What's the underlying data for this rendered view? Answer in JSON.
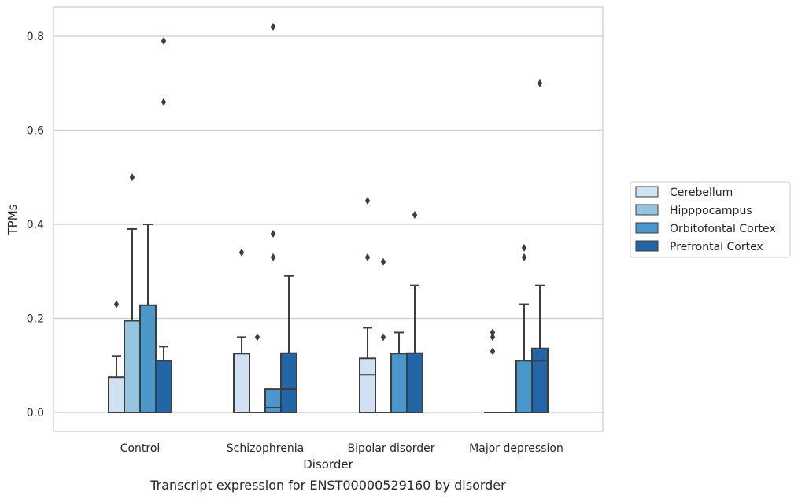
{
  "chart_data": {
    "type": "box",
    "xlabel": "Disorder",
    "ylabel": "TPMs",
    "caption": "Transcript expression for ENST00000529160 by disorder",
    "ylim": [
      -0.04,
      0.86
    ],
    "yticks": [
      0.0,
      0.2,
      0.4,
      0.6,
      0.8
    ],
    "ytick_labels": [
      "0.0",
      "0.2",
      "0.4",
      "0.6",
      "0.8"
    ],
    "grid": "horizontal",
    "legend_position": "right",
    "categories": [
      "Control",
      "Schizophrenia",
      "Bipolar disorder",
      "Major depression"
    ],
    "series": [
      {
        "name": "Cerebellum",
        "color": "#d0e1f2",
        "boxes": [
          {
            "q1": 0.0,
            "median": 0.0,
            "q3": 0.075,
            "whisker_low": 0.0,
            "whisker_high": 0.12,
            "outliers": [
              0.23
            ]
          },
          {
            "q1": 0.0,
            "median": 0.0,
            "q3": 0.125,
            "whisker_low": 0.0,
            "whisker_high": 0.16,
            "outliers": [
              0.34
            ]
          },
          {
            "q1": 0.0,
            "median": 0.08,
            "q3": 0.115,
            "whisker_low": 0.0,
            "whisker_high": 0.18,
            "outliers": [
              0.33,
              0.45
            ]
          },
          {
            "q1": 0.0,
            "median": 0.0,
            "q3": 0.0,
            "whisker_low": 0.0,
            "whisker_high": 0.0,
            "outliers": [
              0.13,
              0.16,
              0.17
            ]
          }
        ]
      },
      {
        "name": "Hipppocampus",
        "color": "#94c4df",
        "boxes": [
          {
            "q1": 0.0,
            "median": 0.0,
            "q3": 0.195,
            "whisker_low": 0.0,
            "whisker_high": 0.39,
            "outliers": [
              0.5
            ]
          },
          {
            "q1": 0.0,
            "median": 0.0,
            "q3": 0.0,
            "whisker_low": 0.0,
            "whisker_high": 0.0,
            "outliers": [
              0.16
            ]
          },
          {
            "q1": 0.0,
            "median": 0.0,
            "q3": 0.0,
            "whisker_low": 0.0,
            "whisker_high": 0.0,
            "outliers": [
              0.16,
              0.32
            ]
          },
          {
            "q1": 0.0,
            "median": 0.0,
            "q3": 0.0,
            "whisker_low": 0.0,
            "whisker_high": 0.0,
            "outliers": []
          }
        ]
      },
      {
        "name": "Orbitofontal Cortex",
        "color": "#4a98c9",
        "boxes": [
          {
            "q1": 0.0,
            "median": 0.0,
            "q3": 0.228,
            "whisker_low": 0.0,
            "whisker_high": 0.4,
            "outliers": []
          },
          {
            "q1": 0.0,
            "median": 0.01,
            "q3": 0.05,
            "whisker_low": 0.0,
            "whisker_high": 0.05,
            "outliers": [
              0.33,
              0.38,
              0.82
            ]
          },
          {
            "q1": 0.0,
            "median": 0.0,
            "q3": 0.125,
            "whisker_low": 0.0,
            "whisker_high": 0.17,
            "outliers": []
          },
          {
            "q1": 0.0,
            "median": 0.0,
            "q3": 0.11,
            "whisker_low": 0.0,
            "whisker_high": 0.23,
            "outliers": [
              0.33,
              0.35
            ]
          }
        ]
      },
      {
        "name": "Prefrontal Cortex",
        "color": "#2366a8",
        "boxes": [
          {
            "q1": 0.0,
            "median": 0.0,
            "q3": 0.11,
            "whisker_low": 0.0,
            "whisker_high": 0.14,
            "outliers": [
              0.66,
              0.79
            ]
          },
          {
            "q1": 0.0,
            "median": 0.05,
            "q3": 0.126,
            "whisker_low": 0.0,
            "whisker_high": 0.29,
            "outliers": []
          },
          {
            "q1": 0.0,
            "median": 0.0,
            "q3": 0.126,
            "whisker_low": 0.0,
            "whisker_high": 0.27,
            "outliers": [
              0.42
            ]
          },
          {
            "q1": 0.0,
            "median": 0.11,
            "q3": 0.136,
            "whisker_low": 0.0,
            "whisker_high": 0.27,
            "outliers": [
              0.7
            ]
          }
        ]
      }
    ]
  }
}
